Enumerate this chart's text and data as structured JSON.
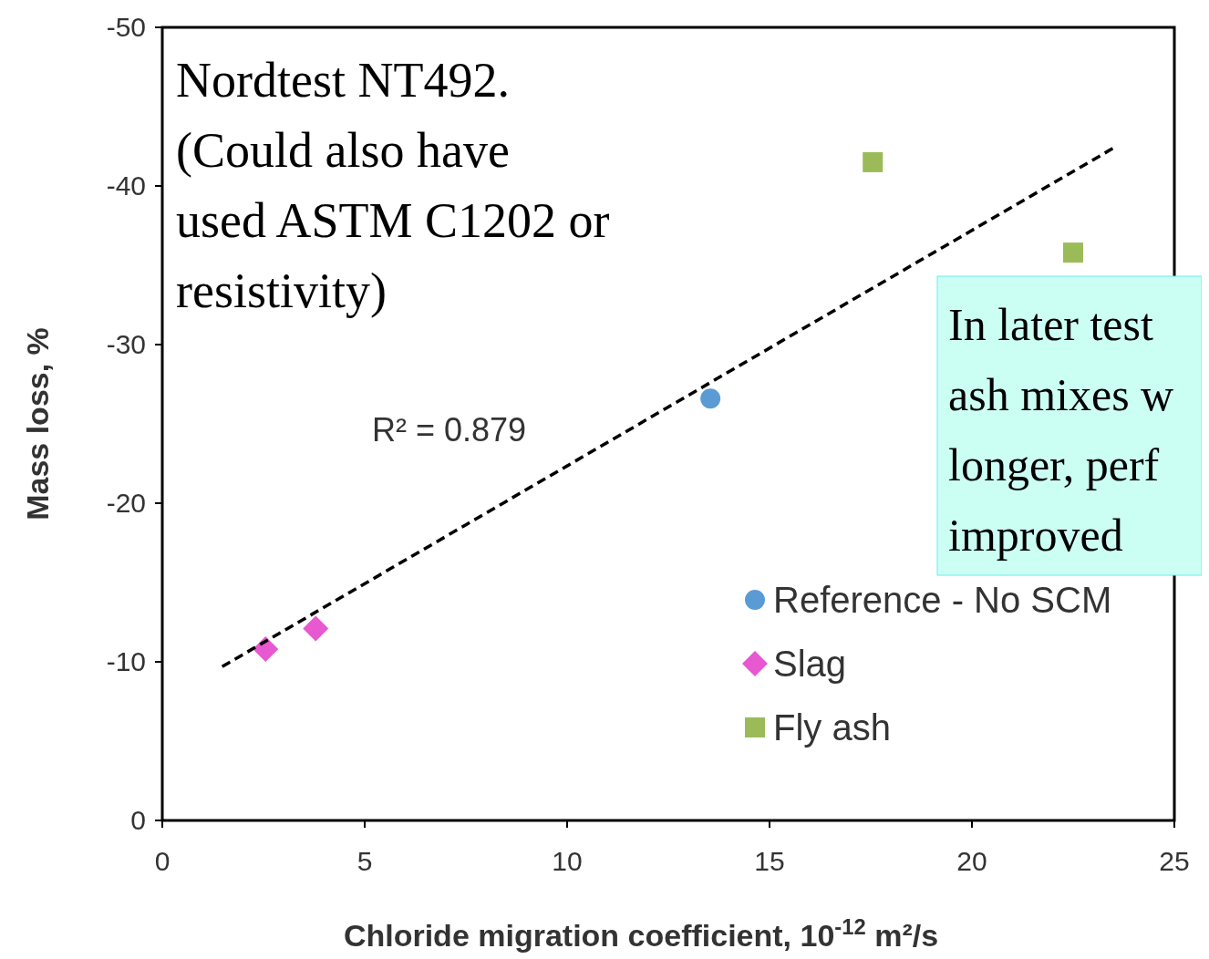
{
  "chart_data": {
    "type": "scatter",
    "xlabel": "Chloride migration coefficient, 10$^{-12}$ m²/s",
    "ylabel": "Mass loss, %",
    "xlim": [
      0,
      25
    ],
    "xticks": [
      0,
      5,
      10,
      15,
      20,
      25
    ],
    "ylim": [
      0,
      -50
    ],
    "yticks": [
      0,
      -10,
      -20,
      -30,
      -40,
      -50
    ],
    "grid": false,
    "legend": "bottom right",
    "series": [
      {
        "name": "Reference - No SCM",
        "color": "#5b9bd5",
        "marker": "circle",
        "x": [
          13.54
        ],
        "values": [
          -26.6
        ]
      },
      {
        "name": "Slag",
        "color": "#e858d0",
        "marker": "diamond",
        "x": [
          2.55,
          3.79
        ],
        "values": [
          -10.8,
          -12.1
        ]
      },
      {
        "name": "Fly ash",
        "color": "#9bbb59",
        "marker": "square",
        "x": [
          17.55,
          22.5
        ],
        "values": [
          -41.5,
          -35.8
        ]
      },
      {
        "type": "line",
        "color": "#000000",
        "line_style": "dashed",
        "marker": "none",
        "x": [
          1.48,
          23.5
        ],
        "values": [
          -9.7,
          -42.4
        ]
      }
    ],
    "annotations": [
      "R² = 0.879",
      "Nordtest NT492.\n(Could also have\nused ASTM C1202 or\nresistivity)",
      "In later test\nash mixes w\nlonger, perf\nimproved"
    ]
  }
}
